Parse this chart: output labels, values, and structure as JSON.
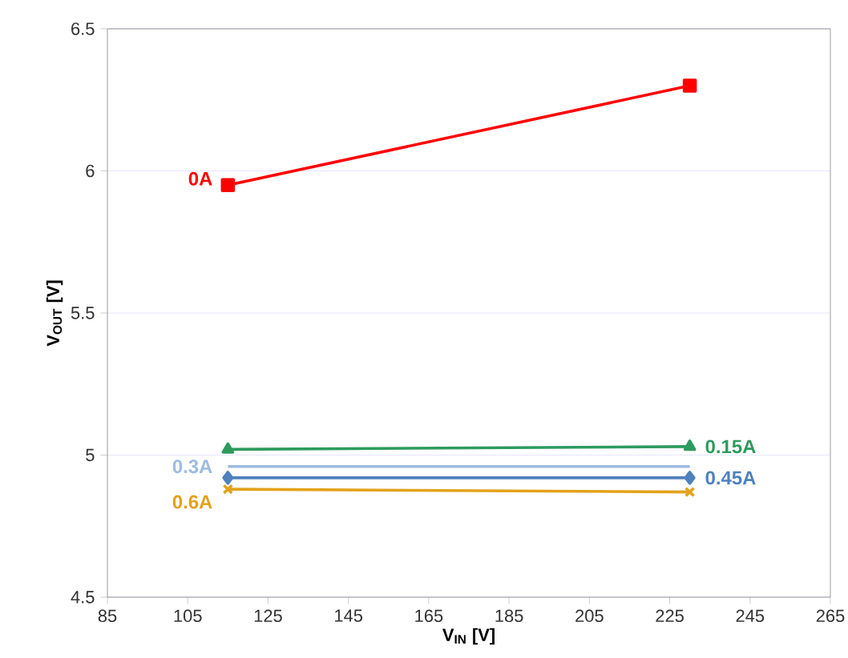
{
  "chart_data": {
    "type": "line",
    "xlabel": "V$_{IN}$ [V]",
    "ylabel": "V$_{OUT}$ [V]",
    "x": [
      115,
      230
    ],
    "series": [
      {
        "name": "0A",
        "color": "#ff0000",
        "marker": "square",
        "values": [
          5.95,
          6.3
        ]
      },
      {
        "name": "0.15A",
        "color": "#2e9b5e",
        "marker": "triangle",
        "values": [
          5.02,
          5.03
        ]
      },
      {
        "name": "0.3A",
        "color": "#9dbbe0",
        "marker": "none",
        "values": [
          4.96,
          4.96
        ]
      },
      {
        "name": "0.45A",
        "color": "#4f81bd",
        "marker": "diamond",
        "values": [
          4.92,
          4.92
        ]
      },
      {
        "name": "0.6A",
        "color": "#e3a21a",
        "marker": "cross",
        "values": [
          4.88,
          4.87
        ]
      }
    ],
    "xlim": [
      85,
      265
    ],
    "xticks": [
      85,
      105,
      125,
      145,
      165,
      185,
      205,
      225,
      245,
      265
    ],
    "ylim": [
      4.5,
      6.5
    ],
    "yticks": [
      4.5,
      5,
      5.5,
      6,
      6.5
    ],
    "grid": "y",
    "line_style": "solid"
  }
}
